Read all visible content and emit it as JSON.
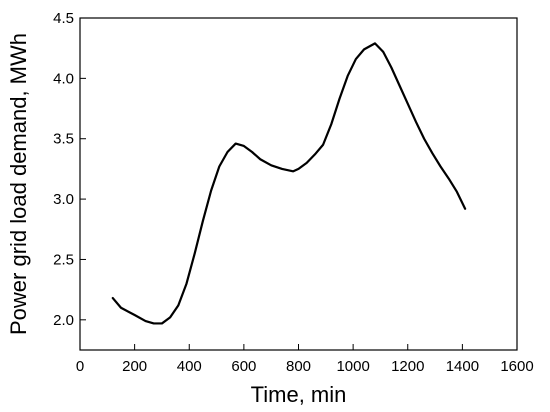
{
  "chart_data": {
    "type": "line",
    "title": "",
    "xlabel": "Time, min",
    "ylabel": "Power grid load demand, MWh",
    "xlim": [
      0,
      1600
    ],
    "ylim": [
      1.75,
      4.5
    ],
    "xticks": [
      0,
      200,
      400,
      600,
      800,
      1000,
      1200,
      1400,
      1600
    ],
    "yticks": [
      2.0,
      2.5,
      3.0,
      3.5,
      4.0,
      4.5
    ],
    "ytick_labels": [
      "2.0",
      "2.5",
      "3.0",
      "3.5",
      "4.0",
      "4.5"
    ],
    "grid": false,
    "legend": "none",
    "line_color": "#000000",
    "series": [
      {
        "x": [
          120,
          150,
          200,
          240,
          270,
          300,
          330,
          360,
          390,
          420,
          450,
          480,
          510,
          540,
          570,
          600,
          630,
          660,
          700,
          740,
          780,
          800,
          830,
          860,
          890,
          920,
          950,
          980,
          1010,
          1040,
          1080,
          1110,
          1140,
          1170,
          1200,
          1230,
          1260,
          1290,
          1320,
          1350,
          1380,
          1410
        ],
        "y": [
          2.18,
          2.1,
          2.04,
          1.99,
          1.97,
          1.97,
          2.02,
          2.12,
          2.3,
          2.55,
          2.82,
          3.07,
          3.27,
          3.39,
          3.46,
          3.44,
          3.39,
          3.33,
          3.28,
          3.25,
          3.23,
          3.25,
          3.3,
          3.37,
          3.45,
          3.62,
          3.83,
          4.02,
          4.16,
          4.24,
          4.29,
          4.22,
          4.09,
          3.94,
          3.79,
          3.64,
          3.5,
          3.38,
          3.27,
          3.17,
          3.06,
          2.92
        ]
      }
    ]
  }
}
